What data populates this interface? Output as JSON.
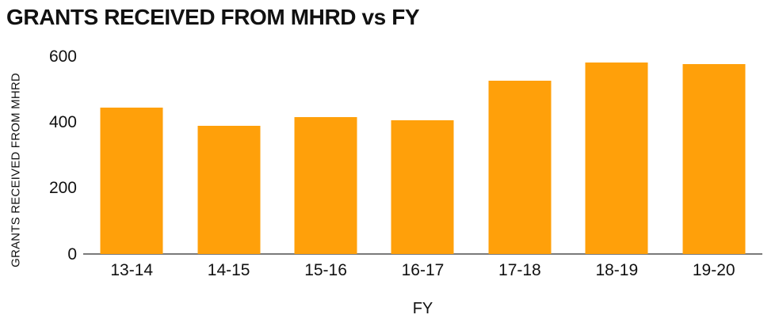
{
  "chart_data": {
    "type": "bar",
    "title": "GRANTS RECEIVED FROM MHRD vs FY",
    "xlabel": "FY",
    "ylabel": "GRANTS RECEIVED FROM MHRD",
    "categories": [
      "13-14",
      "14-15",
      "15-16",
      "16-17",
      "17-18",
      "18-19",
      "19-20"
    ],
    "values": [
      445,
      390,
      415,
      405,
      525,
      580,
      575
    ],
    "yticks": [
      0,
      200,
      400,
      600
    ],
    "ylim": [
      0,
      600
    ],
    "grid": false,
    "legend": false,
    "colors": {
      "bar": "#FFA00A",
      "axis_line": "#7a7a7a",
      "text": "#111111",
      "background": "#FFFFFF"
    }
  }
}
